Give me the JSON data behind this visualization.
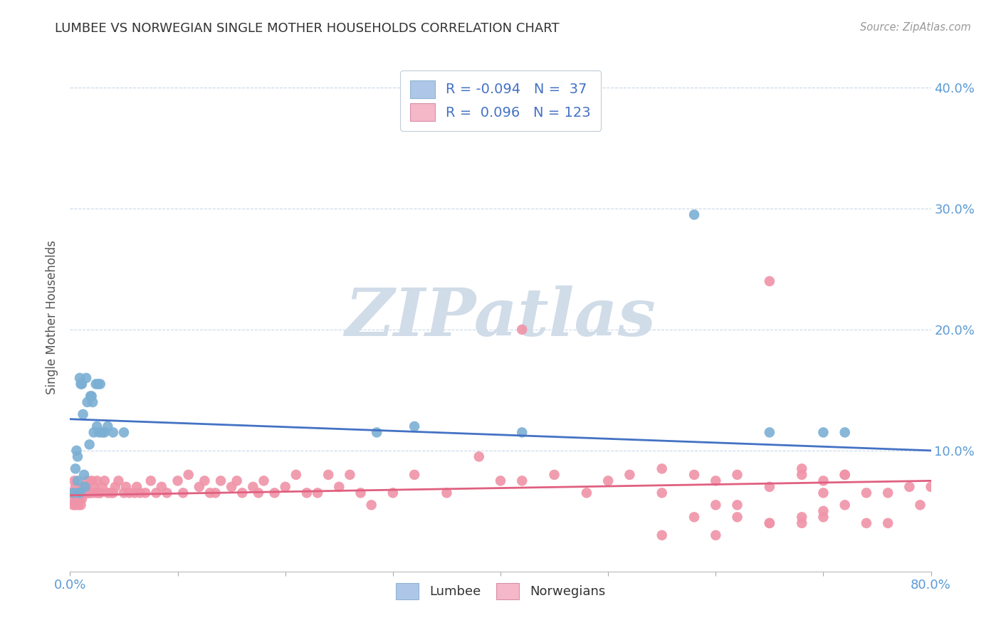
{
  "title": "LUMBEE VS NORWEGIAN SINGLE MOTHER HOUSEHOLDS CORRELATION CHART",
  "source": "Source: ZipAtlas.com",
  "ylabel": "Single Mother Households",
  "xlim": [
    0.0,
    0.8
  ],
  "ylim": [
    0.0,
    0.42
  ],
  "yticks": [
    0.0,
    0.1,
    0.2,
    0.3,
    0.4
  ],
  "xticks": [
    0.0,
    0.1,
    0.2,
    0.3,
    0.4,
    0.5,
    0.6,
    0.7,
    0.8
  ],
  "right_ytick_labels": [
    "",
    "10.0%",
    "20.0%",
    "30.0%",
    "40.0%"
  ],
  "left_ytick_labels": [
    "",
    "",
    "",
    "",
    ""
  ],
  "xtick_labels": [
    "0.0%",
    "",
    "",
    "",
    "",
    "",
    "",
    "",
    "80.0%"
  ],
  "legend_R_lumbee": "-0.094",
  "legend_N_lumbee": "37",
  "legend_R_norwegian": "0.096",
  "legend_N_norwegian": "123",
  "lumbee_patch_color": "#aec6e8",
  "norwegian_patch_color": "#f4b8c8",
  "lumbee_line_color": "#4472c4",
  "norwegian_line_color": "#e06080",
  "lumbee_scatter_color": "#7bafd4",
  "norwegian_scatter_color": "#f093a8",
  "watermark": "ZIPatlas",
  "watermark_color": "#d0dce8",
  "tick_color": "#5b9bd5",
  "grid_color": "#c8d8e8",
  "lumbee_points_x": [
    0.003,
    0.005,
    0.006,
    0.007,
    0.007,
    0.008,
    0.009,
    0.009,
    0.01,
    0.011,
    0.012,
    0.013,
    0.014,
    0.015,
    0.016,
    0.018,
    0.019,
    0.02,
    0.021,
    0.022,
    0.024,
    0.025,
    0.026,
    0.027,
    0.028,
    0.03,
    0.032,
    0.035,
    0.04,
    0.05,
    0.285,
    0.32,
    0.42,
    0.58,
    0.65,
    0.7,
    0.72
  ],
  "lumbee_points_y": [
    0.065,
    0.085,
    0.1,
    0.075,
    0.095,
    0.065,
    0.16,
    0.065,
    0.155,
    0.155,
    0.13,
    0.08,
    0.07,
    0.16,
    0.14,
    0.105,
    0.145,
    0.145,
    0.14,
    0.115,
    0.155,
    0.12,
    0.155,
    0.115,
    0.155,
    0.115,
    0.115,
    0.12,
    0.115,
    0.115,
    0.115,
    0.12,
    0.115,
    0.295,
    0.115,
    0.115,
    0.115
  ],
  "norwegian_points_x": [
    0.001,
    0.002,
    0.003,
    0.003,
    0.004,
    0.005,
    0.005,
    0.005,
    0.006,
    0.006,
    0.007,
    0.007,
    0.008,
    0.008,
    0.009,
    0.009,
    0.01,
    0.01,
    0.011,
    0.011,
    0.012,
    0.012,
    0.013,
    0.014,
    0.015,
    0.016,
    0.016,
    0.017,
    0.018,
    0.019,
    0.02,
    0.022,
    0.022,
    0.025,
    0.025,
    0.027,
    0.028,
    0.03,
    0.032,
    0.035,
    0.038,
    0.04,
    0.042,
    0.045,
    0.05,
    0.052,
    0.055,
    0.06,
    0.062,
    0.065,
    0.07,
    0.075,
    0.08,
    0.085,
    0.09,
    0.1,
    0.105,
    0.11,
    0.12,
    0.125,
    0.13,
    0.135,
    0.14,
    0.15,
    0.155,
    0.16,
    0.17,
    0.175,
    0.18,
    0.19,
    0.2,
    0.21,
    0.22,
    0.23,
    0.24,
    0.25,
    0.26,
    0.27,
    0.28,
    0.3,
    0.32,
    0.35,
    0.38,
    0.4,
    0.42,
    0.45,
    0.48,
    0.5,
    0.52,
    0.55,
    0.58,
    0.6,
    0.62,
    0.65,
    0.68,
    0.7,
    0.72,
    0.74,
    0.76,
    0.78,
    0.79,
    0.8,
    0.42,
    0.55,
    0.65,
    0.68,
    0.7,
    0.72,
    0.58,
    0.62,
    0.65,
    0.68,
    0.7,
    0.72,
    0.74,
    0.76,
    0.6,
    0.62,
    0.65,
    0.68,
    0.7,
    0.55,
    0.6
  ],
  "norwegian_points_y": [
    0.065,
    0.06,
    0.065,
    0.055,
    0.075,
    0.07,
    0.065,
    0.055,
    0.065,
    0.06,
    0.065,
    0.06,
    0.065,
    0.055,
    0.065,
    0.06,
    0.065,
    0.055,
    0.065,
    0.06,
    0.07,
    0.065,
    0.07,
    0.065,
    0.07,
    0.065,
    0.075,
    0.065,
    0.065,
    0.065,
    0.075,
    0.065,
    0.07,
    0.075,
    0.065,
    0.065,
    0.065,
    0.07,
    0.075,
    0.065,
    0.065,
    0.065,
    0.07,
    0.075,
    0.065,
    0.07,
    0.065,
    0.065,
    0.07,
    0.065,
    0.065,
    0.075,
    0.065,
    0.07,
    0.065,
    0.075,
    0.065,
    0.08,
    0.07,
    0.075,
    0.065,
    0.065,
    0.075,
    0.07,
    0.075,
    0.065,
    0.07,
    0.065,
    0.075,
    0.065,
    0.07,
    0.08,
    0.065,
    0.065,
    0.08,
    0.07,
    0.08,
    0.065,
    0.055,
    0.065,
    0.08,
    0.065,
    0.095,
    0.075,
    0.075,
    0.08,
    0.065,
    0.075,
    0.08,
    0.065,
    0.08,
    0.075,
    0.08,
    0.07,
    0.08,
    0.065,
    0.08,
    0.065,
    0.065,
    0.07,
    0.055,
    0.07,
    0.2,
    0.085,
    0.24,
    0.085,
    0.075,
    0.08,
    0.045,
    0.045,
    0.04,
    0.04,
    0.05,
    0.055,
    0.04,
    0.04,
    0.055,
    0.055,
    0.04,
    0.045,
    0.045,
    0.03,
    0.03
  ]
}
